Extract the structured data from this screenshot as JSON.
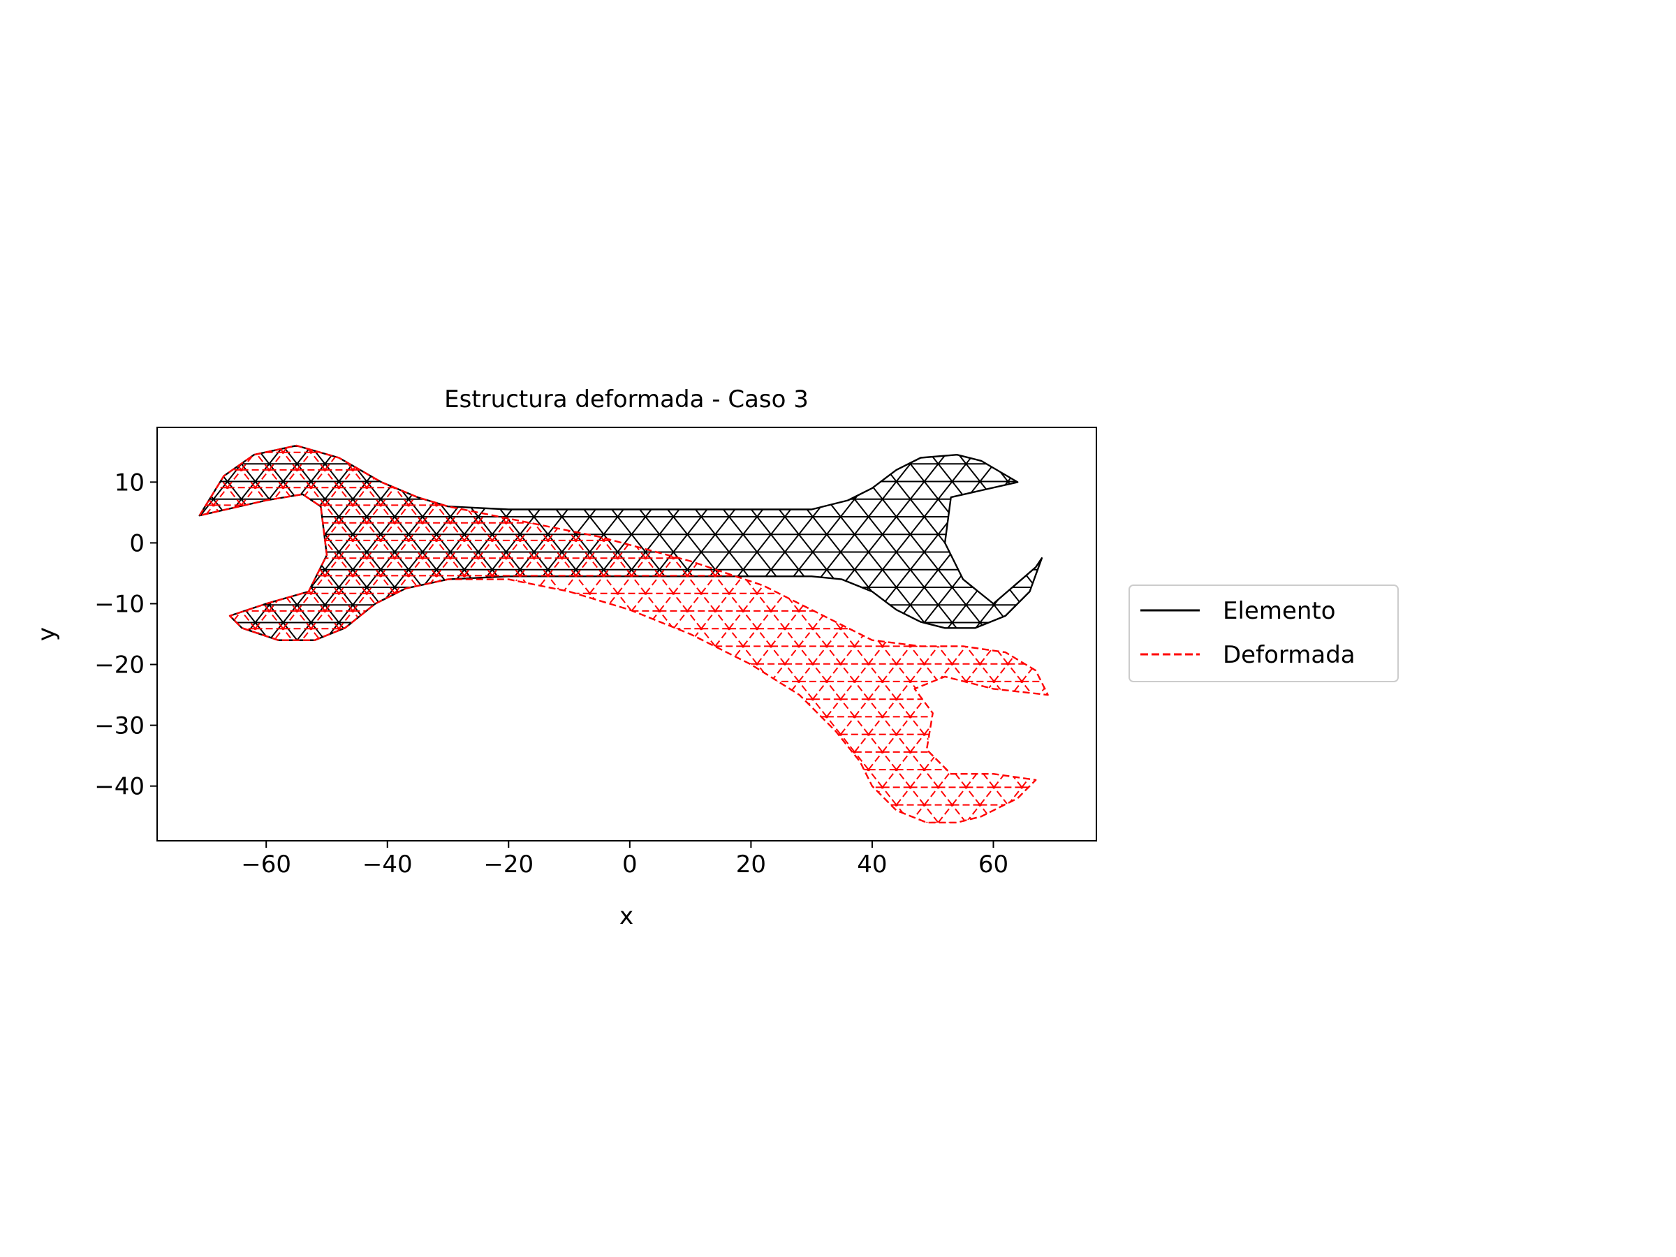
{
  "chart_data": {
    "type": "line",
    "title": "Estructura deformada - Caso 3",
    "xlabel": "x",
    "ylabel": "y",
    "xlim": [
      -78,
      77
    ],
    "ylim": [
      -49,
      19
    ],
    "xticks": [
      -60,
      -40,
      -20,
      0,
      20,
      40,
      60
    ],
    "yticks": [
      10,
      0,
      -10,
      -20,
      -30,
      -40
    ],
    "xtick_labels": [
      "−60",
      "−40",
      "−20",
      "0",
      "20",
      "40",
      "60"
    ],
    "ytick_labels": [
      "10",
      "0",
      "−10",
      "−20",
      "−30",
      "−40"
    ],
    "grid": false,
    "legend_position": "outside-right",
    "series": [
      {
        "name": "Elemento",
        "color": "#000000",
        "style": "solid",
        "outline": [
          [
            -71,
            4.5
          ],
          [
            -67,
            11
          ],
          [
            -62,
            14.5
          ],
          [
            -55,
            16
          ],
          [
            -48,
            14
          ],
          [
            -41,
            10
          ],
          [
            -35,
            7.5
          ],
          [
            -30,
            6
          ],
          [
            -20,
            5.5
          ],
          [
            0,
            5.5
          ],
          [
            20,
            5.5
          ],
          [
            30,
            5.5
          ],
          [
            36,
            7
          ],
          [
            40,
            9
          ],
          [
            44,
            12
          ],
          [
            48,
            14
          ],
          [
            54,
            14.5
          ],
          [
            58,
            13.5
          ],
          [
            64,
            10
          ],
          [
            53,
            7.5
          ],
          [
            52,
            0
          ],
          [
            55,
            -6
          ],
          [
            60,
            -10
          ],
          [
            67,
            -4
          ],
          [
            68,
            -2.5
          ],
          [
            66,
            -8
          ],
          [
            62,
            -12
          ],
          [
            57,
            -14
          ],
          [
            52,
            -14
          ],
          [
            48,
            -13
          ],
          [
            44,
            -11
          ],
          [
            40,
            -8
          ],
          [
            35,
            -6
          ],
          [
            30,
            -5.5
          ],
          [
            20,
            -5.5
          ],
          [
            0,
            -5.5
          ],
          [
            -20,
            -5.5
          ],
          [
            -30,
            -6
          ],
          [
            -37,
            -7.5
          ],
          [
            -42,
            -10
          ],
          [
            -47,
            -14
          ],
          [
            -52,
            -16
          ],
          [
            -58,
            -16
          ],
          [
            -64,
            -14
          ],
          [
            -66,
            -12
          ],
          [
            -60,
            -10
          ],
          [
            -53,
            -8
          ],
          [
            -50,
            -2
          ],
          [
            -51,
            6
          ],
          [
            -54,
            8
          ],
          [
            -60,
            7
          ],
          [
            -71,
            4.5
          ]
        ]
      },
      {
        "name": "Deformada",
        "color": "#ff0000",
        "style": "dashed",
        "outline": [
          [
            -71,
            4.5
          ],
          [
            -67,
            11
          ],
          [
            -62,
            14.5
          ],
          [
            -55,
            16
          ],
          [
            -48,
            14
          ],
          [
            -41,
            10
          ],
          [
            -35,
            7.5
          ],
          [
            -30,
            6
          ],
          [
            -20,
            4
          ],
          [
            -5,
            1
          ],
          [
            10,
            -3
          ],
          [
            22,
            -7
          ],
          [
            32,
            -12
          ],
          [
            40,
            -16
          ],
          [
            48,
            -17
          ],
          [
            55,
            -17
          ],
          [
            62,
            -18
          ],
          [
            67,
            -21
          ],
          [
            69,
            -25
          ],
          [
            60,
            -24
          ],
          [
            52,
            -22
          ],
          [
            47,
            -24
          ],
          [
            50,
            -28
          ],
          [
            49,
            -34
          ],
          [
            53,
            -38
          ],
          [
            60,
            -38
          ],
          [
            67,
            -39
          ],
          [
            64,
            -42
          ],
          [
            58,
            -45
          ],
          [
            54,
            -46
          ],
          [
            49,
            -46
          ],
          [
            44,
            -44
          ],
          [
            40,
            -40
          ],
          [
            38,
            -36
          ],
          [
            34,
            -31
          ],
          [
            28,
            -25
          ],
          [
            20,
            -20
          ],
          [
            10,
            -15
          ],
          [
            0,
            -11
          ],
          [
            -10,
            -8
          ],
          [
            -20,
            -6
          ],
          [
            -30,
            -6
          ],
          [
            -37,
            -7.5
          ],
          [
            -42,
            -10
          ],
          [
            -47,
            -14
          ],
          [
            -52,
            -16
          ],
          [
            -58,
            -16
          ],
          [
            -64,
            -14
          ],
          [
            -66,
            -12
          ],
          [
            -60,
            -10
          ],
          [
            -53,
            -8
          ],
          [
            -50,
            -2
          ],
          [
            -51,
            6
          ],
          [
            -54,
            8
          ],
          [
            -60,
            7
          ],
          [
            -71,
            4.5
          ]
        ]
      }
    ]
  }
}
